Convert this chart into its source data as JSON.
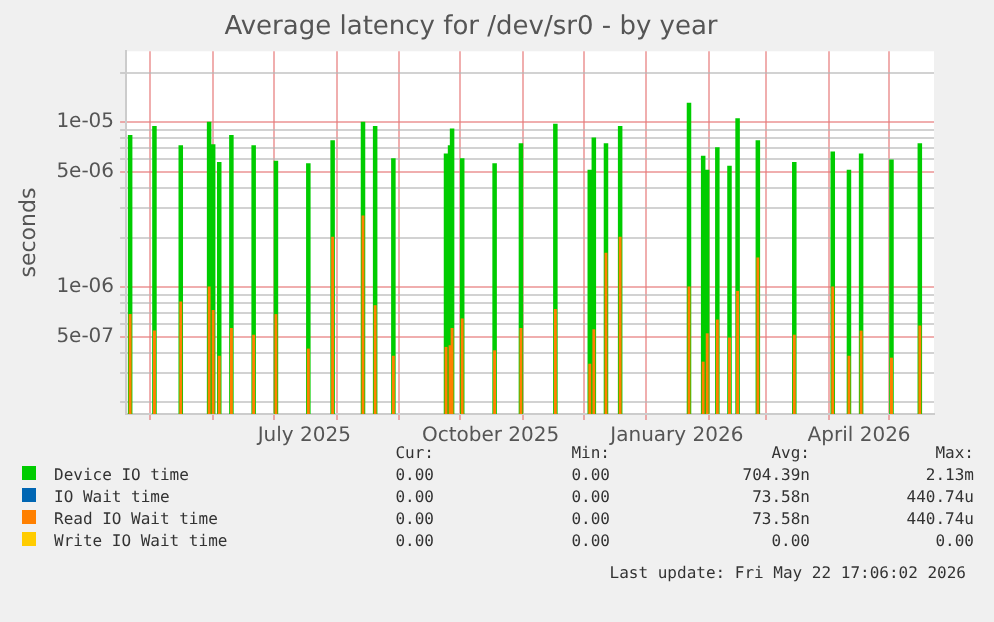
{
  "chart_data": {
    "type": "bar",
    "title": "Average latency for /dev/sr0 - by year",
    "ylabel": "seconds",
    "log": true,
    "grid": true,
    "legend": "bottom",
    "xlim": [
      "2025-04-19",
      "2026-05-23"
    ],
    "xticks": [
      {
        "value": "2025-05-01",
        "label": null
      },
      {
        "value": "2025-06-01",
        "label": null
      },
      {
        "value": "2025-07-01",
        "label": null
      },
      {
        "value": "2025-07-16",
        "label": "July 2025"
      },
      {
        "value": "2025-08-01",
        "label": null
      },
      {
        "value": "2025-09-01",
        "label": null
      },
      {
        "value": "2025-10-01",
        "label": null
      },
      {
        "value": "2025-10-16",
        "label": "October 2025"
      },
      {
        "value": "2025-11-01",
        "label": null
      },
      {
        "value": "2025-12-01",
        "label": null
      },
      {
        "value": "2026-01-01",
        "label": null
      },
      {
        "value": "2026-01-16",
        "label": "January 2026"
      },
      {
        "value": "2026-02-01",
        "label": null
      },
      {
        "value": "2026-03-01",
        "label": null
      },
      {
        "value": "2026-04-01",
        "label": null
      },
      {
        "value": "2026-04-16",
        "label": "April 2026"
      },
      {
        "value": "2026-05-01",
        "label": null
      }
    ],
    "ylim": [
      1.7e-07,
      2.7e-05
    ],
    "yticks": [
      {
        "value": 2e-07,
        "label": null
      },
      {
        "value": 3e-07,
        "label": null
      },
      {
        "value": 4e-07,
        "label": null
      },
      {
        "value": 5e-07,
        "label": "5e-07"
      },
      {
        "value": 6e-07,
        "label": null
      },
      {
        "value": 7e-07,
        "label": null
      },
      {
        "value": 8e-07,
        "label": null
      },
      {
        "value": 9e-07,
        "label": null
      },
      {
        "value": 1e-06,
        "label": "1e-06"
      },
      {
        "value": 2e-06,
        "label": null
      },
      {
        "value": 3e-06,
        "label": null
      },
      {
        "value": 4e-06,
        "label": null
      },
      {
        "value": 5e-06,
        "label": "5e-06"
      },
      {
        "value": 6e-06,
        "label": null
      },
      {
        "value": 7e-06,
        "label": null
      },
      {
        "value": 8e-06,
        "label": null
      },
      {
        "value": 9e-06,
        "label": null
      },
      {
        "value": 1e-05,
        "label": "1e-05"
      },
      {
        "value": 2e-05,
        "label": null
      }
    ],
    "x": [
      "2025-04-21",
      "2025-05-03",
      "2025-05-16",
      "2025-05-30",
      "2025-06-01",
      "2025-06-04",
      "2025-06-10",
      "2025-06-21",
      "2025-07-02",
      "2025-07-18",
      "2025-07-30",
      "2025-08-14",
      "2025-08-20",
      "2025-08-29",
      "2025-09-24",
      "2025-09-26",
      "2025-09-27",
      "2025-10-02",
      "2025-10-18",
      "2025-10-31",
      "2025-11-17",
      "2025-12-04",
      "2025-12-06",
      "2025-12-12",
      "2025-12-19",
      "2026-01-22",
      "2026-01-29",
      "2026-01-31",
      "2026-02-05",
      "2026-02-11",
      "2026-02-15",
      "2026-02-25",
      "2026-03-15",
      "2026-04-03",
      "2026-04-11",
      "2026-04-17",
      "2026-05-02",
      "2026-05-16"
    ],
    "series": [
      {
        "name": "Device IO time",
        "color": "#00cc00",
        "values": [
          8.3e-06,
          9.4e-06,
          7.2e-06,
          1e-05,
          7.3e-06,
          5.7e-06,
          8.3e-06,
          7.2e-06,
          5.8e-06,
          5.6e-06,
          7.7e-06,
          1e-05,
          9.4e-06,
          6e-06,
          6.4e-06,
          7.2e-06,
          9.1e-06,
          6e-06,
          5.6e-06,
          7.4e-06,
          9.7e-06,
          5.1e-06,
          8e-06,
          7.4e-06,
          9.4e-06,
          1.3e-05,
          6.2e-06,
          5.1e-06,
          7e-06,
          5.4e-06,
          1.05e-05,
          7.7e-06,
          5.7e-06,
          6.6e-06,
          5.1e-06,
          6.4e-06,
          5.9e-06,
          7.4e-06
        ]
      },
      {
        "name": "IO Wait time",
        "color": "#0066b3",
        "values": [
          null,
          null,
          null,
          null,
          null,
          null,
          null,
          null,
          null,
          null,
          null,
          null,
          null,
          null,
          null,
          null,
          null,
          null,
          null,
          null,
          null,
          null,
          null,
          null,
          null,
          null,
          null,
          null,
          null,
          null,
          null,
          null,
          null,
          null,
          null,
          null,
          null,
          null
        ]
      },
      {
        "name": "Read IO Wait time",
        "color": "#ff8000",
        "values": [
          6.8e-07,
          5.4e-07,
          8.1e-07,
          1e-06,
          7.2e-07,
          3.8e-07,
          5.6e-07,
          5.1e-07,
          6.8e-07,
          4.2e-07,
          2e-06,
          2.7e-06,
          7.7e-07,
          3.8e-07,
          4.3e-07,
          4.4e-07,
          5.6e-07,
          6.4e-07,
          4.1e-07,
          5.6e-07,
          7.3e-07,
          3.4e-07,
          5.5e-07,
          1.6e-06,
          2e-06,
          1e-06,
          3.5e-07,
          5.2e-07,
          6.3e-07,
          4.9e-07,
          9.4e-07,
          1.5e-06,
          5.1e-07,
          1e-06,
          3.8e-07,
          5.4e-07,
          3.7e-07,
          5.8e-07
        ]
      },
      {
        "name": "Write IO Wait time",
        "color": "#ffcc00",
        "values": [
          null,
          null,
          null,
          null,
          null,
          null,
          null,
          null,
          null,
          null,
          null,
          null,
          null,
          null,
          null,
          null,
          null,
          null,
          null,
          null,
          null,
          null,
          null,
          null,
          null,
          null,
          null,
          null,
          null,
          null,
          null,
          null,
          null,
          null,
          null,
          null,
          null,
          null
        ]
      }
    ],
    "annotations": [
      "Cur:",
      "Min:",
      "Avg:",
      "Max:",
      "0.00",
      "0.00",
      "704.39n",
      "2.13m",
      "0.00",
      "0.00",
      "73.58n",
      "440.74u",
      "0.00",
      "0.00",
      "73.58n",
      "440.74u",
      "0.00",
      "0.00",
      "0.00",
      "0.00",
      "Last update: Fri May 22 17:06:02 2026"
    ]
  }
}
